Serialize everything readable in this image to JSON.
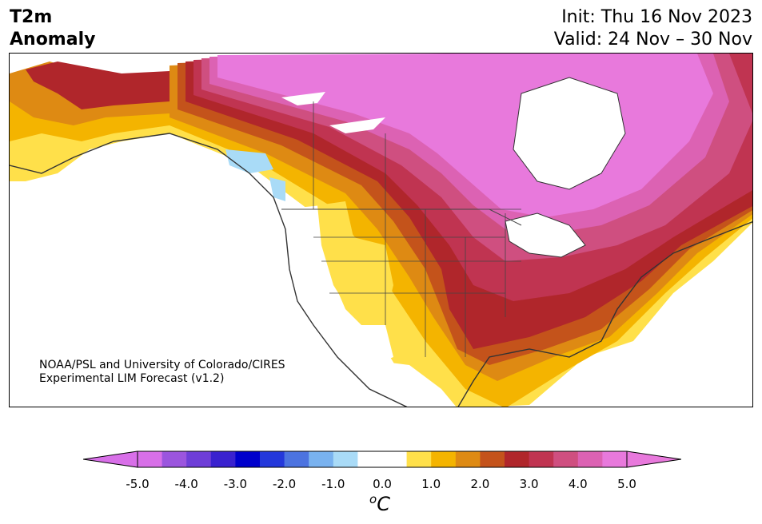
{
  "header": {
    "title_line1": "T2m",
    "title_line2": "Anomaly",
    "init": "Init: Thu 16 Nov 2023",
    "valid": "Valid: 24 Nov – 30 Nov"
  },
  "credit": {
    "line1": "NOAA/PSL and University of Colorado/CIRES",
    "line2": "Experimental LIM Forecast (v1.2)"
  },
  "colorbar": {
    "ticks": [
      "-5.0",
      "-4.0",
      "-3.0",
      "-2.0",
      "-1.0",
      "0.0",
      "1.0",
      "2.0",
      "3.0",
      "4.0",
      "5.0"
    ],
    "unit": "C",
    "unit_prefix": "o",
    "min_extend_color": "#d86fe8",
    "max_extend_color": "#e879dc",
    "colors": [
      "#d86fe8",
      "#9b55de",
      "#6e3ed8",
      "#3a22cf",
      "#0000cc",
      "#2438db",
      "#4c73e0",
      "#79b2ef",
      "#a9dbf7",
      "#ffffff",
      "#ffffff",
      "#ffe04a",
      "#f4b400",
      "#de8a13",
      "#c4531b",
      "#b0262b",
      "#c03451",
      "#cf4f80",
      "#dc62b3",
      "#e879dc"
    ]
  },
  "map": {
    "region": "North America",
    "ocean_color": "#ffffff",
    "border_color": "#333333"
  }
}
